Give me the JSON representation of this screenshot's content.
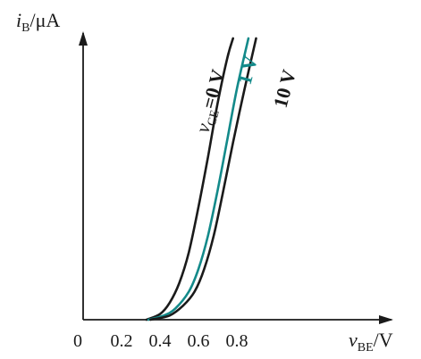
{
  "chart_data": {
    "type": "line",
    "xlabel": {
      "main": "v",
      "sub": "BE",
      "unit": "/V"
    },
    "ylabel": {
      "main": "i",
      "sub": "B",
      "unit": "/μA"
    },
    "x_ticks": [
      "0",
      "0.2",
      "0.4",
      "0.6",
      "0.8"
    ],
    "x_tick_values": [
      0,
      0.2,
      0.4,
      0.6,
      0.8
    ],
    "xlim": [
      0,
      1.05
    ],
    "ylim": [
      0,
      1
    ],
    "grid": false,
    "series": [
      {
        "name": "vCE=0 V",
        "label": {
          "prefix": "v",
          "sub": "CE",
          "suffix": "=0 V"
        },
        "color": "#1a1a1a",
        "x": [
          0.33,
          0.4,
          0.45,
          0.5,
          0.55,
          0.6,
          0.65,
          0.7,
          0.75,
          0.78
        ],
        "y": [
          0.0,
          0.02,
          0.06,
          0.13,
          0.24,
          0.4,
          0.58,
          0.77,
          0.93,
          1.0
        ]
      },
      {
        "name": "1 V",
        "label": {
          "prefix": "",
          "sub": "",
          "suffix": "1 V"
        },
        "color": "#138a8a",
        "x": [
          0.34,
          0.42,
          0.48,
          0.55,
          0.6,
          0.65,
          0.7,
          0.75,
          0.8,
          0.86
        ],
        "y": [
          0.0,
          0.015,
          0.04,
          0.1,
          0.18,
          0.3,
          0.46,
          0.64,
          0.82,
          1.0
        ]
      },
      {
        "name": "10 V",
        "label": {
          "prefix": "",
          "sub": "",
          "suffix": "10 V"
        },
        "color": "#1a1a1a",
        "x": [
          0.35,
          0.45,
          0.52,
          0.58,
          0.63,
          0.68,
          0.73,
          0.78,
          0.84,
          0.9
        ],
        "y": [
          0.0,
          0.015,
          0.05,
          0.1,
          0.18,
          0.3,
          0.46,
          0.63,
          0.82,
          1.0
        ]
      }
    ]
  }
}
